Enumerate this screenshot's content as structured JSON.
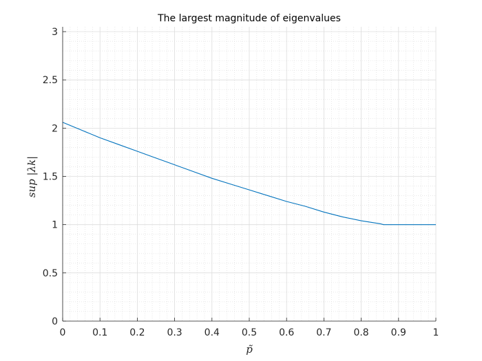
{
  "chart_data": {
    "type": "line",
    "title": "The largest magnitude of eigenvalues",
    "xlabel": "p̃",
    "ylabel": "sup |λk|",
    "xlim": [
      0,
      1
    ],
    "ylim": [
      0,
      3.05
    ],
    "xticks": [
      0,
      0.1,
      0.2,
      0.3,
      0.4,
      0.5,
      0.6,
      0.7,
      0.8,
      0.9,
      1
    ],
    "xtick_labels": [
      "0",
      "0.1",
      "0.2",
      "0.3",
      "0.4",
      "0.5",
      "0.6",
      "0.7",
      "0.8",
      "0.9",
      "1"
    ],
    "yticks": [
      0,
      0.5,
      1,
      1.5,
      2,
      2.5,
      3
    ],
    "ytick_labels": [
      "0",
      "0.5",
      "1",
      "1.5",
      "2",
      "2.5",
      "3"
    ],
    "grid": true,
    "minor_grid": true,
    "series": [
      {
        "color": "#0072BD",
        "x": [
          0,
          0.05,
          0.1,
          0.15,
          0.2,
          0.25,
          0.3,
          0.35,
          0.4,
          0.45,
          0.5,
          0.55,
          0.6,
          0.65,
          0.7,
          0.75,
          0.8,
          0.85,
          0.86,
          0.9,
          0.95,
          1
        ],
        "y": [
          2.06,
          1.98,
          1.9,
          1.83,
          1.76,
          1.69,
          1.62,
          1.55,
          1.48,
          1.42,
          1.36,
          1.3,
          1.24,
          1.19,
          1.13,
          1.08,
          1.04,
          1.01,
          1.0,
          1.0,
          1.0,
          1.0
        ]
      }
    ]
  }
}
